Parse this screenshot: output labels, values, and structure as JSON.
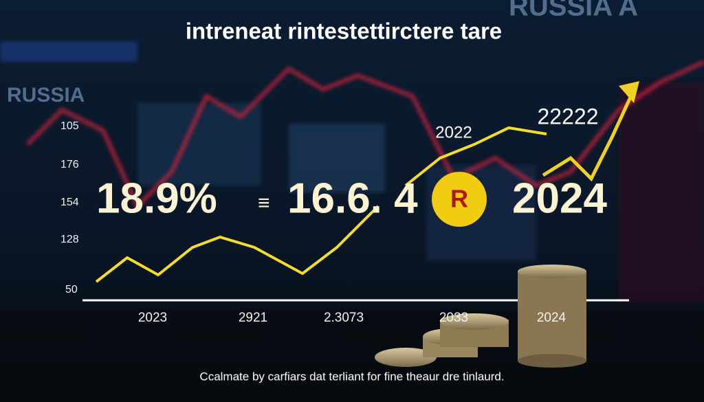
{
  "title": "intreneat rintestettirctere tare",
  "background_labels": [
    "RUSSIA",
    "RUSSIA A"
  ],
  "axis_labels": [
    "105",
    "176",
    "154",
    "128",
    "50"
  ],
  "annotations": [
    "2022",
    "22222"
  ],
  "figures": [
    "18.9%",
    "≡",
    "16.6. 4",
    "R",
    "2024"
  ],
  "x_labels": [
    "2023",
    "2921",
    "2.3073",
    "2033",
    "2024"
  ],
  "caption": "Ccalmate by carfiars dat terliant for fine theaur dre tinlaurd."
}
